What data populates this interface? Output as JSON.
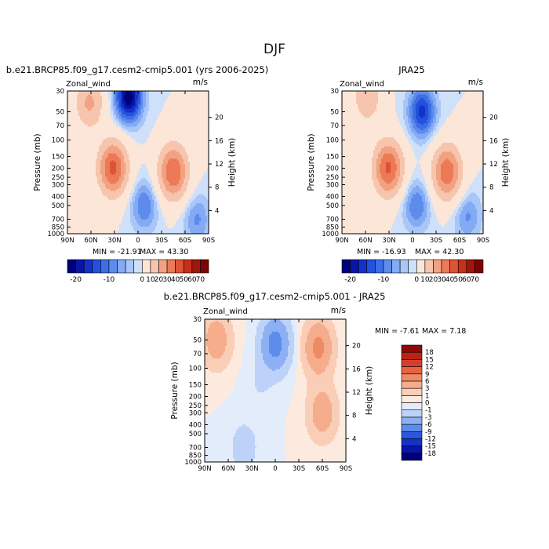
{
  "page_title": "DJF",
  "chart_data": [
    {
      "type": "heatmap",
      "title": "b.e21.BRCP85.f09_g17.cesm2-cmip5.001 (yrs 2006-2025)",
      "variable": "Zonal_wind",
      "units": "m/s",
      "xlabel": "",
      "ylabel": "Pressure (mb)",
      "ylabel_right": "Height (km)",
      "x_ticks": [
        "90N",
        "60N",
        "30N",
        "0",
        "30S",
        "60S",
        "90S"
      ],
      "x_range": [
        90,
        -90
      ],
      "pressure_ticks": [
        "30",
        "50",
        "70",
        "100",
        "150",
        "200",
        "250",
        "300",
        "400",
        "500",
        "700",
        "850",
        "1000"
      ],
      "pressure_tick_values": [
        30,
        50,
        70,
        100,
        150,
        200,
        250,
        300,
        400,
        500,
        700,
        850,
        1000
      ],
      "height_ticks": [
        "20",
        "16",
        "12",
        "8",
        "4"
      ],
      "height_tick_values": [
        20,
        16,
        12,
        8,
        4
      ],
      "min_label": "MIN = -21.91",
      "max_label": "MAX = 43.30",
      "features": [
        {
          "lat": 62,
          "p": 40,
          "value": 22
        },
        {
          "lat": 32,
          "p": 200,
          "value": 43
        },
        {
          "lat": 12,
          "p": 35,
          "value": -22
        },
        {
          "lat": -45,
          "p": 220,
          "value": 40
        },
        {
          "lat": -8,
          "p": 500,
          "value": -10
        },
        {
          "lat": -75,
          "p": 700,
          "value": -8
        }
      ]
    },
    {
      "type": "heatmap",
      "title": "JRA25",
      "variable": "Zonal_wind",
      "units": "m/s",
      "xlabel": "",
      "ylabel": "Pressure (mb)",
      "ylabel_right": "Height (km)",
      "x_ticks": [
        "90N",
        "60N",
        "30N",
        "0",
        "30S",
        "60S",
        "90S"
      ],
      "x_range": [
        90,
        -90
      ],
      "pressure_ticks": [
        "30",
        "50",
        "70",
        "100",
        "150",
        "200",
        "250",
        "300",
        "400",
        "500",
        "700",
        "850",
        "1000"
      ],
      "pressure_tick_values": [
        30,
        50,
        70,
        100,
        150,
        200,
        250,
        300,
        400,
        500,
        700,
        850,
        1000
      ],
      "height_ticks": [
        "20",
        "16",
        "12",
        "8",
        "4"
      ],
      "height_tick_values": [
        20,
        16,
        12,
        8,
        4
      ],
      "min_label": "MIN = -16.93",
      "max_label": "MAX = 42.30",
      "features": [
        {
          "lat": 58,
          "p": 35,
          "value": 18
        },
        {
          "lat": 31,
          "p": 200,
          "value": 42
        },
        {
          "lat": -12,
          "p": 50,
          "value": -16
        },
        {
          "lat": -44,
          "p": 220,
          "value": 38
        },
        {
          "lat": -5,
          "p": 500,
          "value": -10
        },
        {
          "lat": -70,
          "p": 650,
          "value": -8
        }
      ]
    },
    {
      "type": "heatmap",
      "title": "b.e21.BRCP85.f09_g17.cesm2-cmip5.001 - JRA25",
      "variable": "Zonal_wind",
      "units": "m/s",
      "xlabel": "",
      "ylabel": "Pressure (mb)",
      "ylabel_right": "Height (km)",
      "x_ticks": [
        "90N",
        "60N",
        "30N",
        "0",
        "30S",
        "60S",
        "90S"
      ],
      "x_range": [
        90,
        -90
      ],
      "pressure_ticks": [
        "30",
        "50",
        "70",
        "100",
        "150",
        "200",
        "250",
        "300",
        "400",
        "500",
        "700",
        "850",
        "1000"
      ],
      "pressure_tick_values": [
        30,
        50,
        70,
        100,
        150,
        200,
        250,
        300,
        400,
        500,
        700,
        850,
        1000
      ],
      "height_ticks": [
        "20",
        "16",
        "12",
        "8",
        "4"
      ],
      "height_tick_values": [
        20,
        16,
        12,
        8,
        4
      ],
      "min_label": "MIN =  -7.61",
      "max_label": "MAX =   7.18",
      "features": [
        {
          "lat": 75,
          "p": 50,
          "value": 5
        },
        {
          "lat": 0,
          "p": 55,
          "value": -7.6
        },
        {
          "lat": -55,
          "p": 60,
          "value": 7
        },
        {
          "lat": -60,
          "p": 300,
          "value": 5
        },
        {
          "lat": 40,
          "p": 700,
          "value": -2
        },
        {
          "lat": 20,
          "p": 150,
          "value": -1
        }
      ]
    }
  ],
  "colorbars": {
    "full": {
      "colors": [
        "#00007a",
        "#0a14a8",
        "#1432c8",
        "#2450dc",
        "#3e6ee6",
        "#5d8ced",
        "#84aaf3",
        "#a9c6f8",
        "#cfe0fa",
        "#fbe6d8",
        "#f7c5ae",
        "#f2a282",
        "#ec7a56",
        "#dc5434",
        "#c4301a",
        "#a0150c",
        "#7a0404"
      ],
      "edges": [
        -22.5,
        -20,
        -17.5,
        -15,
        -12.5,
        -10,
        -7.5,
        -5,
        -2.5,
        0,
        10,
        20,
        30,
        40,
        50,
        60,
        70,
        75
      ],
      "tick_labels": [
        "-20",
        "-10",
        "0",
        "10",
        "20",
        "30",
        "40",
        "50",
        "60",
        "70"
      ],
      "tick_index": [
        1,
        5,
        9,
        10,
        11,
        12,
        13,
        14,
        15,
        16
      ]
    },
    "diff": {
      "colors": [
        "#00007a",
        "#0a14a8",
        "#1432c8",
        "#2b56de",
        "#5d8ced",
        "#8db0f4",
        "#bcd2f8",
        "#e2ecfb",
        "#fdeadf",
        "#f9cdb6",
        "#f5ad8c",
        "#f08a64",
        "#e86440",
        "#d6402a",
        "#bc2214",
        "#8f0808"
      ],
      "edges": [
        -20,
        -18,
        -15,
        -12,
        -9,
        -6,
        -3,
        -1,
        0,
        1,
        3,
        6,
        9,
        12,
        15,
        18,
        20
      ],
      "tick_labels": [
        "-18",
        "-15",
        "-12",
        "-9",
        "-6",
        "-3",
        "-1",
        "0",
        "1",
        "3",
        "6",
        "9",
        "12",
        "15",
        "18"
      ],
      "tick_index": [
        1,
        2,
        3,
        4,
        5,
        6,
        7,
        8,
        9,
        10,
        11,
        12,
        13,
        14,
        15
      ]
    }
  }
}
